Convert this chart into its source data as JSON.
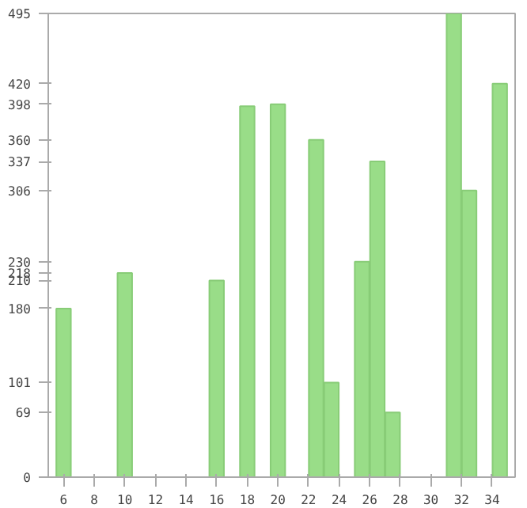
{
  "chart_data": {
    "type": "bar",
    "x": [
      6,
      10,
      16,
      18,
      20,
      22.5,
      23.5,
      25.5,
      26.5,
      27.5,
      31.5,
      32.5,
      34.5
    ],
    "values": [
      180,
      218,
      210,
      396,
      398,
      360,
      101,
      230,
      337,
      69,
      495,
      306,
      420
    ],
    "color": "#99dd88",
    "xlim": [
      5,
      35.5
    ],
    "xticks": [
      6,
      8,
      10,
      12,
      14,
      16,
      18,
      20,
      22,
      24,
      26,
      28,
      30,
      32,
      34
    ],
    "ylim": [
      0,
      495
    ],
    "yticks": [
      0,
      69,
      101,
      180,
      210,
      218,
      230,
      306,
      337,
      360,
      398,
      420,
      495
    ],
    "grid": false
  }
}
